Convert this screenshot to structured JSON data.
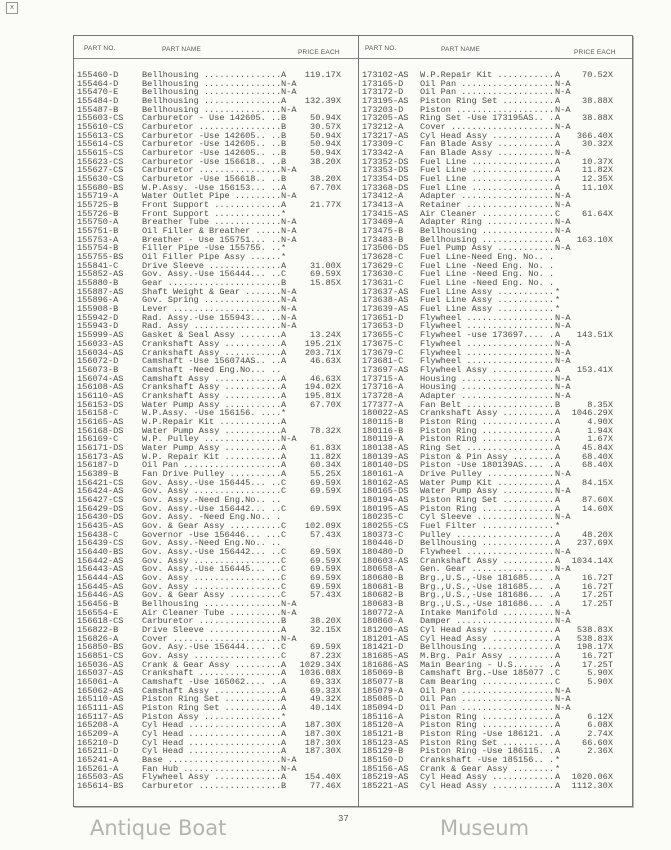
{
  "corner_mark": "x",
  "headers": {
    "part_no": "PART NO.",
    "part_name": "PART NAME",
    "price_each": "PRICE EACH"
  },
  "page_number": "37",
  "watermark": {
    "line1": "Antique Boat",
    "line2": "Museum"
  },
  "left_rows": [
    [
      "155460-D",
      "Bellhousing",
      "A",
      "119.17X"
    ],
    [
      "155464-D",
      "Bellhousing",
      "N-A",
      ""
    ],
    [
      "155470-E",
      "Bellhousing",
      "N-A",
      ""
    ],
    [
      "155484-D",
      "Bellhousing",
      "A",
      "132.39X"
    ],
    [
      "155487-B",
      "Bellhousing",
      "N-A",
      ""
    ],
    [
      "155603-CS",
      "Carburetor - Use 142605.",
      "B",
      "50.94X"
    ],
    [
      "155610-CS",
      "Carburetor",
      "B",
      "30.57X"
    ],
    [
      "155613-CS",
      "Carburetor -Use 142605..",
      "B",
      "50.94X"
    ],
    [
      "155614-CS",
      "Carburetor -Use 142605..",
      "B",
      "50.94X"
    ],
    [
      "155615-CS",
      "Carburetor -Use 142605..",
      "B",
      "50.94X"
    ],
    [
      "155623-CS",
      "Carburetor -Use 156618..",
      "B",
      "38.20X"
    ],
    [
      "155627-CS",
      "Carburetor",
      "N-A",
      ""
    ],
    [
      "155630-CS",
      "Carburetor -Use 156618..",
      "B",
      "38.20X"
    ],
    [
      "155680-BS",
      "W.P.Assy. -Use 156153...",
      "A",
      "67.70X"
    ],
    [
      "155719-A",
      "Water Outlet Pipe",
      "N-A",
      ""
    ],
    [
      "155725-B",
      "Front Support",
      "A",
      "21.77X"
    ],
    [
      "155726-B",
      "Front Support",
      "*",
      ""
    ],
    [
      "155750-A",
      "Breather Tube",
      "N-A",
      ""
    ],
    [
      "155751-B",
      "Oil Filler & Breather",
      "N-A",
      ""
    ],
    [
      "155753-A",
      "Breather - Use 155751...",
      "N-A",
      ""
    ],
    [
      "155754-B",
      "Filler Pipe -Use 155755.",
      "*",
      ""
    ],
    [
      "155755-BS",
      "Oil Filler Pipe Assy",
      "*",
      ""
    ],
    [
      "155841-C",
      "Drive Sleeve",
      "A",
      "31.00X"
    ],
    [
      "155852-AS",
      "Gov. Assy.-Use 156444...",
      "C",
      "69.59X"
    ],
    [
      "155880-B",
      "Gear",
      "B",
      "15.85X"
    ],
    [
      "155887-AS",
      "Shaft Weight & Gear",
      "N-A",
      ""
    ],
    [
      "155896-A",
      "Gov. Spring",
      "N-A",
      ""
    ],
    [
      "155908-B",
      "Lever",
      "N-A",
      ""
    ],
    [
      "155942-D",
      "Rad. Assy.-Use 155943...",
      "N-A",
      ""
    ],
    [
      "155943-D",
      "Rad. Assy",
      "N-A",
      ""
    ],
    [
      "155999-AS",
      "Gasket & Seal Assy",
      "A",
      "13.24X"
    ],
    [
      "156033-AS",
      "Crankshaft Assy",
      "A",
      "195.21X"
    ],
    [
      "156034-AS",
      "Crankshaft Assy",
      "A",
      "203.71X"
    ],
    [
      "156072-D",
      "Camshaft -Use 156074AS..",
      "A",
      "46.63X"
    ],
    [
      "156073-B",
      "Camshaft -Need Eng.No...",
      "",
      ""
    ],
    [
      "156074-AS",
      "Camshaft Assy",
      "A",
      "46.63X"
    ],
    [
      "156108-AS",
      "Crankshaft Assy",
      "A",
      "194.02X"
    ],
    [
      "156110-AS",
      "Crankshaft Assy",
      "A",
      "195.81X"
    ],
    [
      "156153-DS",
      "Water Pump Assy",
      "A",
      "67.70X"
    ],
    [
      "156158-C",
      "W.P.Assy. -Use 156156.",
      "*",
      ""
    ],
    [
      "156165-AS",
      "W.P.Repair Kit",
      "A",
      ""
    ],
    [
      "156168-DS",
      "Water Pump Assy",
      "A",
      "78.32X"
    ],
    [
      "156169-C",
      "W.P. Pulley",
      "N-A",
      ""
    ],
    [
      "156171-DS",
      "Water Pump Assy",
      "A",
      "61.83X"
    ],
    [
      "156173-AS",
      "W.P. Repair Kit",
      "A",
      "11.82X"
    ],
    [
      "156187-D",
      "Oil Pan",
      "A",
      "60.34X"
    ],
    [
      "156389-B",
      "Fan Drive Pulley",
      "A",
      "55.25X"
    ],
    [
      "156421-CS",
      "Gov. Assy.-Use 156445...",
      "C",
      "69.59X"
    ],
    [
      "156424-AS",
      "Gov. Assy",
      "C",
      "69.59X"
    ],
    [
      "156427-CS",
      "Gov. Assy.-Need Eng.No..",
      "",
      ""
    ],
    [
      "156429-DS",
      "Gov. Assy.-Use 156442...",
      "C",
      "69.59X"
    ],
    [
      "156430-DS",
      "Gov. Assy. -Need Eng.No..",
      "",
      ""
    ],
    [
      "156435-AS",
      "Gov. & Gear Assy",
      "C",
      "102.09X"
    ],
    [
      "156438-C",
      "Governor -Use 156446...",
      "C",
      "57.43X"
    ],
    [
      "156439-CS",
      "Gov. Assy.-Need Eng.No..",
      "",
      ""
    ],
    [
      "156440-BS",
      "Gov. Assy.-Use 156442...",
      "C",
      "69.59X"
    ],
    [
      "156442-AS",
      "Gov. Assy",
      "C",
      "69.59X"
    ],
    [
      "156443-AS",
      "Gov. Assy.-Use 156445...",
      "C",
      "69.59X"
    ],
    [
      "156444-AS",
      "Gov. Assy",
      "C",
      "69.59X"
    ],
    [
      "156445-AS",
      "Gov. Assy",
      "C",
      "69.59X"
    ],
    [
      "156446-AS",
      "Gov. & Gear Assy",
      "C",
      "57.43X"
    ],
    [
      "156456-B",
      "Bellhousing",
      "N-A",
      ""
    ],
    [
      "156554-E",
      "Air Cleaner Tube",
      "N-A",
      ""
    ],
    [
      "156618-CS",
      "Carburetor",
      "B",
      "38.20X"
    ],
    [
      "156822-B",
      "Drive Sleeve",
      "A",
      "32.15X"
    ],
    [
      "156826-A",
      "Cover",
      "N-A",
      ""
    ],
    [
      "156850-BS",
      "Gov. Asy.-Use 156444....",
      "C",
      "69.59X"
    ],
    [
      "156851-CS",
      "Gov. Assy",
      "C",
      "87.23X"
    ],
    [
      "165036-AS",
      "Crank & Gear Assy",
      "A",
      "1029.34X"
    ],
    [
      "165037-AS",
      "Crankshaft",
      "A",
      "1036.08X"
    ],
    [
      "165061-A",
      "Camshaft -Use 165062....",
      "A",
      "69.33X"
    ],
    [
      "165062-AS",
      "Camshaft Assy",
      "A",
      "69.33X"
    ],
    [
      "165110-AS",
      "Piston Ring Set",
      "A",
      "49.32X"
    ],
    [
      "165111-AS",
      "Piston Ring Set",
      "A",
      "40.14X"
    ],
    [
      "165117-AS",
      "Piston Assy",
      "*",
      ""
    ],
    [
      "165208-A",
      "Cyl Head",
      "A",
      "187.30X"
    ],
    [
      "165209-A",
      "Cyl Head",
      "A",
      "187.30X"
    ],
    [
      "165210-D",
      "Cyl Head",
      "A",
      "187.30X"
    ],
    [
      "165211-D",
      "Cyl Head",
      "A",
      "187.30X"
    ],
    [
      "165241-A",
      "Base",
      "N-A",
      ""
    ],
    [
      "165261-A",
      "Fan Hub",
      "N-A",
      ""
    ],
    [
      "165503-AS",
      "Flywheel Assy",
      "A",
      "154.40X"
    ],
    [
      "165614-BS",
      "Carburetor",
      "B",
      "77.46X"
    ]
  ],
  "right_rows": [
    [
      "173102-AS",
      "W.P.Repair Kit",
      "A",
      "70.52X"
    ],
    [
      "173165-D",
      "Oil Pan",
      "N-A",
      ""
    ],
    [
      "173172-D",
      "Oil Pan",
      "N-A",
      ""
    ],
    [
      "173195-AS",
      "Piston Ring Set",
      "A",
      "38.88X"
    ],
    [
      "173203-D",
      "Piston",
      "N-A",
      ""
    ],
    [
      "173205-AS",
      "Ring Set -Use 173195AS..",
      "A",
      "38.88X"
    ],
    [
      "173212-A",
      "Cover",
      "N-A",
      ""
    ],
    [
      "173217-AS",
      "Cyl Head Assy",
      "A",
      "366.40X"
    ],
    [
      "173309-C",
      "Fan Blade Assy",
      "A",
      "30.32X"
    ],
    [
      "173342-A",
      "Fan Blade Assy",
      "N-A",
      ""
    ],
    [
      "173352-DS",
      "Fuel Line",
      "A",
      "10.37X"
    ],
    [
      "173353-DS",
      "Fuel Line",
      "A",
      "11.82X"
    ],
    [
      "173354-DS",
      "Fuel Line",
      "A",
      "12.35X"
    ],
    [
      "173368-DS",
      "Fuel Line",
      "A",
      "11.10X"
    ],
    [
      "173412-A",
      "Adapter",
      "N-A",
      ""
    ],
    [
      "173413-A",
      "Retainer",
      "N-A",
      ""
    ],
    [
      "173415-AS",
      "Air Cleaner",
      "C",
      "61.64X"
    ],
    [
      "173469-A",
      "Adapter Ring",
      "N-A",
      ""
    ],
    [
      "173475-B",
      "Bellhousing",
      "N-A",
      ""
    ],
    [
      "173483-B",
      "Bellhousing",
      "A",
      "163.10X"
    ],
    [
      "173506-DS",
      "Fuel Pump Assy",
      "N-A",
      ""
    ],
    [
      "173628-C",
      "Fuel Line-Need Eng. No..",
      "",
      ""
    ],
    [
      "173629-C",
      "Fuel Line -Need Eng. No.",
      "",
      ""
    ],
    [
      "173630-C",
      "Fuel Line -Need Eng. No.",
      "",
      ""
    ],
    [
      "173631-C",
      "Fuel Line -Need Eng. No.",
      "",
      ""
    ],
    [
      "173637-AS",
      "Fuel Line Assy",
      "*",
      ""
    ],
    [
      "173638-AS",
      "Fuel Line Assy",
      "*",
      ""
    ],
    [
      "173639-AS",
      "Fuel Line Assy",
      "*",
      ""
    ],
    [
      "173651-D",
      "Flywheel",
      "N-A",
      ""
    ],
    [
      "173653-D",
      "Flywheel",
      "N-A",
      ""
    ],
    [
      "173655-C",
      "Flywheel -use 173697....",
      "A",
      "143.51X"
    ],
    [
      "173675-C",
      "Flywheel",
      "N-A",
      ""
    ],
    [
      "173679-C",
      "Flywheel",
      "N-A",
      ""
    ],
    [
      "173681-C",
      "Flywheel",
      "N-A",
      ""
    ],
    [
      "173697-AS",
      "Flywheel Assy",
      "A",
      "153.41X"
    ],
    [
      "173715-A",
      "Housing",
      "N-A",
      ""
    ],
    [
      "173716-A",
      "Housing",
      "N-A",
      ""
    ],
    [
      "173728-A",
      "Adapter",
      "N-A",
      ""
    ],
    [
      "177377-A",
      "Fan Belt",
      "B",
      "8.35X"
    ],
    [
      "180022-AS",
      "Crankshaft Assy",
      "A",
      "1046.29X"
    ],
    [
      "180115-B",
      "Piston Ring",
      "A",
      "4.90X"
    ],
    [
      "180116-B",
      "Piston Ring",
      "A",
      "1.94X"
    ],
    [
      "180119-A",
      "Piston Ring",
      "A",
      "1.67X"
    ],
    [
      "180138-AS",
      "Ring Set",
      "A",
      "45.84X"
    ],
    [
      "180139-AS",
      "Piston & Pin Assy",
      "A",
      "68.40X"
    ],
    [
      "180140-DS",
      "Piston -Use 180139AS....",
      "A",
      "68.40X"
    ],
    [
      "180161-A",
      "Drive Pulley",
      "N-A",
      ""
    ],
    [
      "180162-AS",
      "Water Pump Kit",
      "A",
      "84.15X"
    ],
    [
      "180165-DS",
      "Water Pump Assy",
      "N-A",
      ""
    ],
    [
      "180194-AS",
      "Piston Ring Set",
      "A",
      "87.60X"
    ],
    [
      "180195-AS",
      "Piston Ring",
      "A",
      "14.60X"
    ],
    [
      "180235-C",
      "Cyl Sleeve",
      "N-A",
      ""
    ],
    [
      "180255-CS",
      "Fuel Filter",
      "*",
      ""
    ],
    [
      "180373-C",
      "Pulley",
      "A",
      "48.20X"
    ],
    [
      "180446-D",
      "Bellhousing",
      "A",
      "237.69X"
    ],
    [
      "180480-D",
      "Flywheel",
      "N-A",
      ""
    ],
    [
      "180603-AS",
      "Crankshaft Assy",
      "A",
      "1034.14X"
    ],
    [
      "180658-A",
      "Gen. Gear",
      "N-A",
      ""
    ],
    [
      "180680-B",
      "Brg.,U.S.,-Use 181685...",
      "A",
      "16.72T"
    ],
    [
      "180681-B",
      "Brg.,U.S.,-Use 181685...",
      "A",
      "16.72T"
    ],
    [
      "180682-B",
      "Brg.,U.S.,-Use 181686...",
      "A",
      "17.25T"
    ],
    [
      "180683-B",
      "Brg.,U.S.,-Use 181686...",
      "A",
      "17.25T"
    ],
    [
      "180772-A",
      "Intake Manifold",
      "N-A",
      ""
    ],
    [
      "180860-A",
      "Damper",
      "N-A",
      ""
    ],
    [
      "181200-AS",
      "Cyl Head Assy",
      "A",
      "538.83X"
    ],
    [
      "181201-AS",
      "Cyl Head Assy",
      "A",
      "538.83X"
    ],
    [
      "181421-D",
      "Bellhousing",
      "A",
      "198.17X"
    ],
    [
      "181685-AS",
      "M.Brg. Pair Assy",
      "A",
      "16.72T"
    ],
    [
      "181686-AS",
      "Main Bearing - U.S......",
      "A",
      "17.25T"
    ],
    [
      "185069-B",
      "Camshaft Brg.-Use 185077",
      "C",
      "5.90X"
    ],
    [
      "185077-B",
      "Cam Bearing",
      "C",
      "5.90X"
    ],
    [
      "185079-A",
      "Oil Pan",
      "N-A",
      ""
    ],
    [
      "185085-D",
      "Oil Pan",
      "N-A",
      ""
    ],
    [
      "185094-D",
      "Oil Pan",
      "N-A",
      ""
    ],
    [
      "185116-A",
      "Piston Ring",
      "A",
      "6.12X"
    ],
    [
      "185120-A",
      "Piston Ring",
      "A",
      "6.08X"
    ],
    [
      "185121-B",
      "Piston Ring -Use 186121.",
      "A",
      "2.74X"
    ],
    [
      "185123-AS",
      "Piston Ring Set",
      "A",
      "66.60X"
    ],
    [
      "185129-B",
      "Piston Ring -Use 186115.",
      "A",
      "2.36X"
    ],
    [
      "185150-D",
      "Crankshaft -Use 185156..",
      "*",
      ""
    ],
    [
      "185156-AS",
      "Crank & Gear Assy",
      "*",
      ""
    ],
    [
      "185219-AS",
      "Cyl Head Assy",
      "A",
      "1020.06X"
    ],
    [
      "185221-AS",
      "Cyl Head Assy",
      "A",
      "1112.30X"
    ]
  ]
}
